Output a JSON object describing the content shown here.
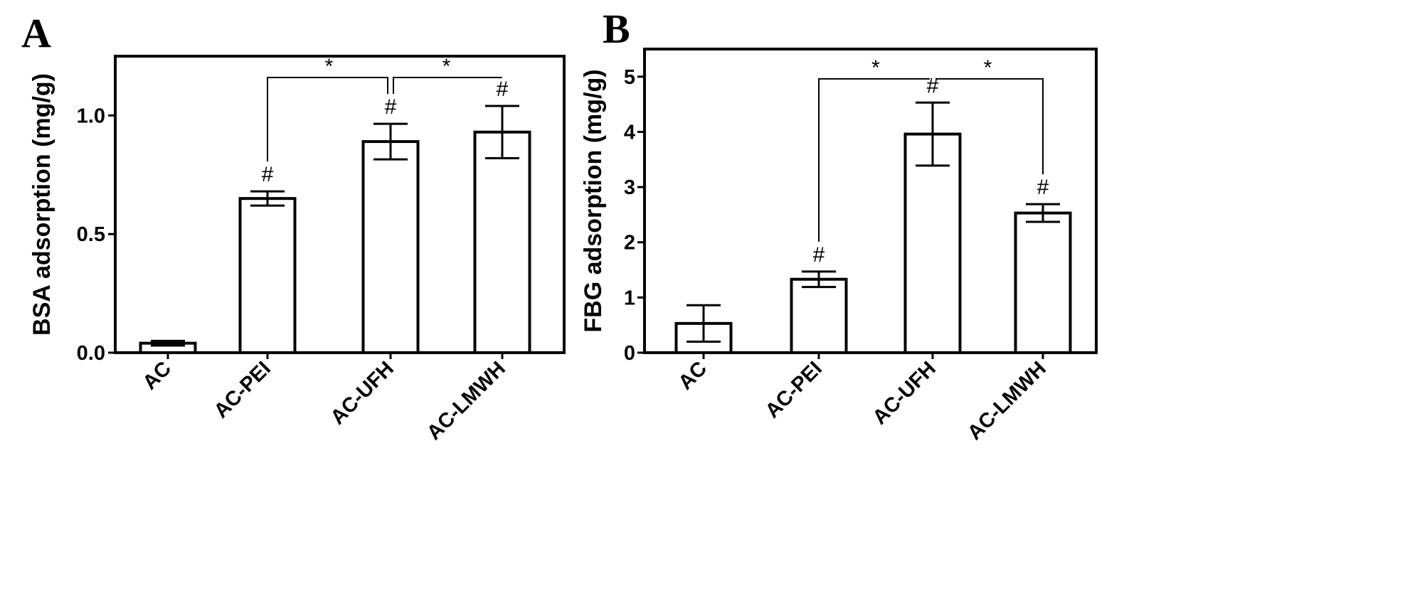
{
  "chart_data": [
    {
      "panel": "A",
      "type": "bar",
      "ylabel": "BSA adsorption (mg/g)",
      "categories": [
        "AC",
        "AC-PEI",
        "AC-UFH",
        "AC-LMWH"
      ],
      "values": [
        0.04,
        0.65,
        0.89,
        0.93
      ],
      "errors": [
        0.01,
        0.03,
        0.075,
        0.11
      ],
      "ylim": [
        0,
        1.25
      ],
      "yticks": [
        "0.0",
        "0.5",
        "1.0"
      ],
      "yticks_values": [
        0,
        0.5,
        1.0
      ],
      "marks": [
        "",
        "#",
        "#",
        "#"
      ],
      "comparisons": [
        {
          "from": 1,
          "to": 2,
          "label": "*"
        },
        {
          "from": 2,
          "to": 3,
          "label": "*"
        }
      ],
      "bracket_level": 1.16
    },
    {
      "panel": "B",
      "type": "bar",
      "ylabel": "FBG adsorption (mg/g)",
      "categories": [
        "AC",
        "AC-PEI",
        "AC-UFH",
        "AC-LMWH"
      ],
      "values": [
        0.53,
        1.33,
        3.96,
        2.53
      ],
      "errors": [
        0.33,
        0.14,
        0.57,
        0.16
      ],
      "ylim": [
        0,
        5.5
      ],
      "yticks": [
        "0",
        "1",
        "2",
        "3",
        "4",
        "5"
      ],
      "yticks_values": [
        0,
        1,
        2,
        3,
        4,
        5
      ],
      "marks": [
        "",
        "#",
        "#",
        "#"
      ],
      "comparisons": [
        {
          "from": 1,
          "to": 2,
          "label": "*"
        },
        {
          "from": 2,
          "to": 3,
          "label": "*"
        }
      ],
      "bracket_level": 4.96
    }
  ]
}
